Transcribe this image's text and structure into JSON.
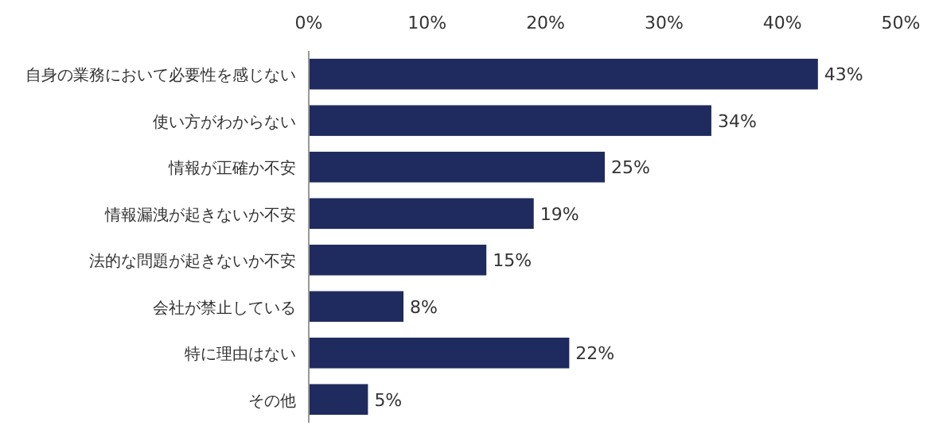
{
  "chart_data": {
    "type": "bar",
    "orientation": "horizontal",
    "categories": [
      "自身の業務において必要性を感じない",
      "使い方がわからない",
      "情報が正確か不安",
      "情報漏洩が起きないか不安",
      "法的な問題が起きないか不安",
      "会社が禁止している",
      "特に理由はない",
      "その他"
    ],
    "values": [
      43,
      34,
      25,
      19,
      15,
      8,
      22,
      5
    ],
    "value_labels": [
      "43%",
      "34%",
      "25%",
      "19%",
      "15%",
      "8%",
      "22%",
      "5%"
    ],
    "color": "#1f2b5e",
    "xlim": [
      0,
      50
    ],
    "xticks": [
      {
        "value": 0,
        "label": "0%"
      },
      {
        "value": 10,
        "label": "10%"
      },
      {
        "value": 20,
        "label": "20%"
      },
      {
        "value": 30,
        "label": "30%"
      },
      {
        "value": 40,
        "label": "40%"
      },
      {
        "value": 50,
        "label": "50%"
      }
    ],
    "grid": false
  }
}
